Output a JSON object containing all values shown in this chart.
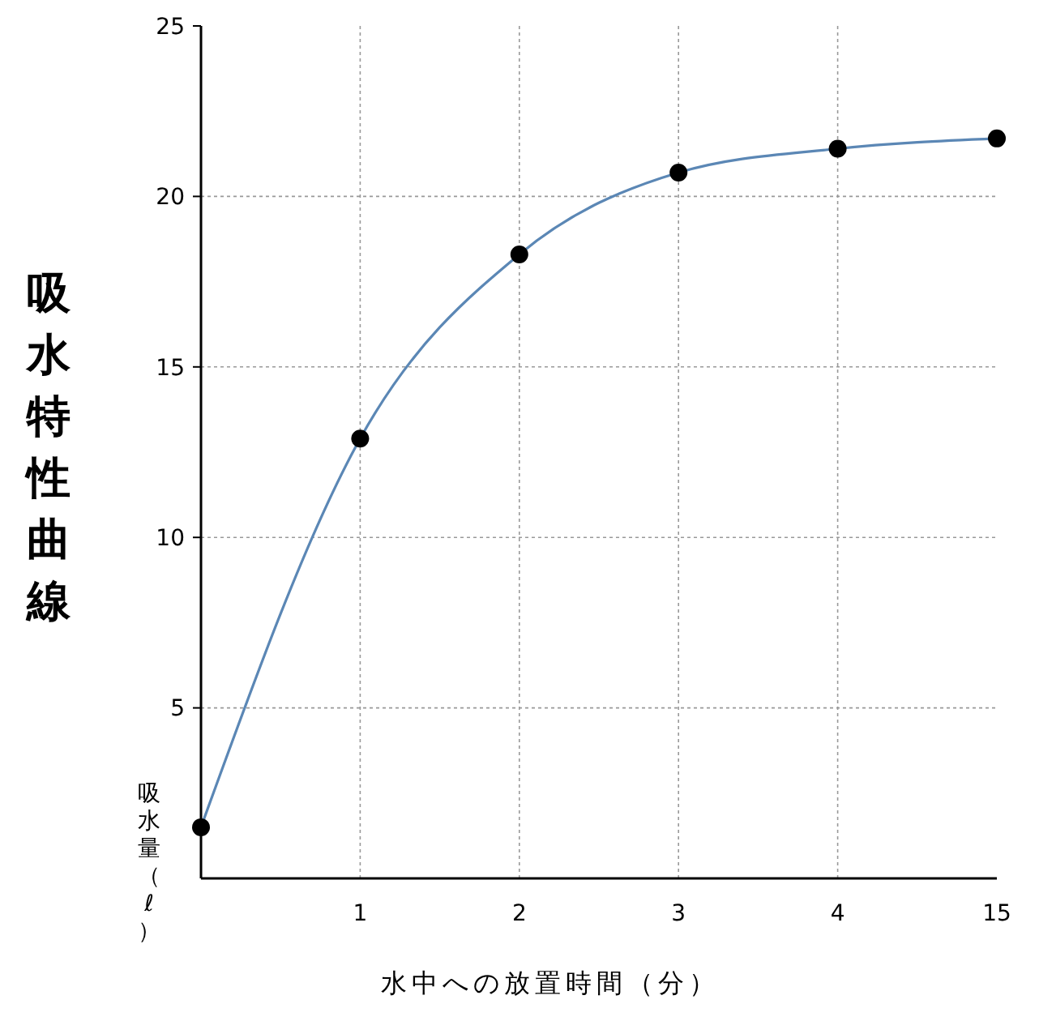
{
  "chart_data": {
    "type": "line",
    "title": "吸水特性曲線",
    "ylabel": "吸水量（ℓ）",
    "xlabel": "水中への放置時間（分）",
    "categories": [
      null,
      "1",
      "2",
      "3",
      "4",
      "15"
    ],
    "series": [
      {
        "color": "#5b87b5",
        "values": [
          1.5,
          12.9,
          18.3,
          20.7,
          21.4,
          21.7
        ]
      }
    ],
    "ylim": [
      0,
      25
    ],
    "yticks": [
      5,
      10,
      15,
      20,
      25
    ],
    "grid": true,
    "marker": "circle",
    "line_style": "solid"
  }
}
